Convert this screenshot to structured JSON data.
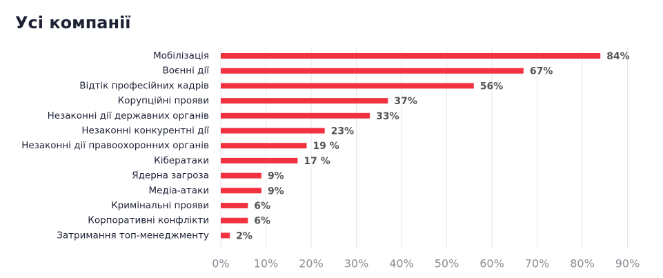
{
  "chart_data": {
    "type": "bar",
    "orientation": "horizontal",
    "title": "Усі компанії",
    "xlabel": "",
    "ylabel": "",
    "grid": "vertical",
    "xlim": [
      0,
      90
    ],
    "x_ticks": [
      0,
      10,
      20,
      30,
      40,
      50,
      60,
      70,
      80,
      90
    ],
    "x_tick_labels": [
      "0%",
      "10%",
      "20%",
      "30%",
      "40%",
      "50%",
      "60%",
      "70%",
      "80%",
      "90%"
    ],
    "bar_color": "#f23240",
    "categories": [
      "Мобілізація",
      "Воєнні дії",
      "Відтік професійних кадрів",
      "Корупційні прояви",
      "Незаконні дії державних органів",
      "Незаконні конкурентні дії",
      "Незаконні дії правоохоронних органів",
      "Кібератаки",
      "Ядерна загроза",
      "Медіа-атаки",
      "Кримінальні прояви",
      "Корпоративні конфлікти",
      "Затримання топ-менеджменту"
    ],
    "values": [
      84,
      67,
      56,
      37,
      33,
      23,
      19,
      17,
      9,
      9,
      6,
      6,
      2
    ],
    "value_labels": [
      "84%",
      "67%",
      "56%",
      "37%",
      "33%",
      "23%",
      "19 %",
      "17 %",
      "9%",
      "9%",
      "6%",
      "6%",
      "2%"
    ]
  }
}
